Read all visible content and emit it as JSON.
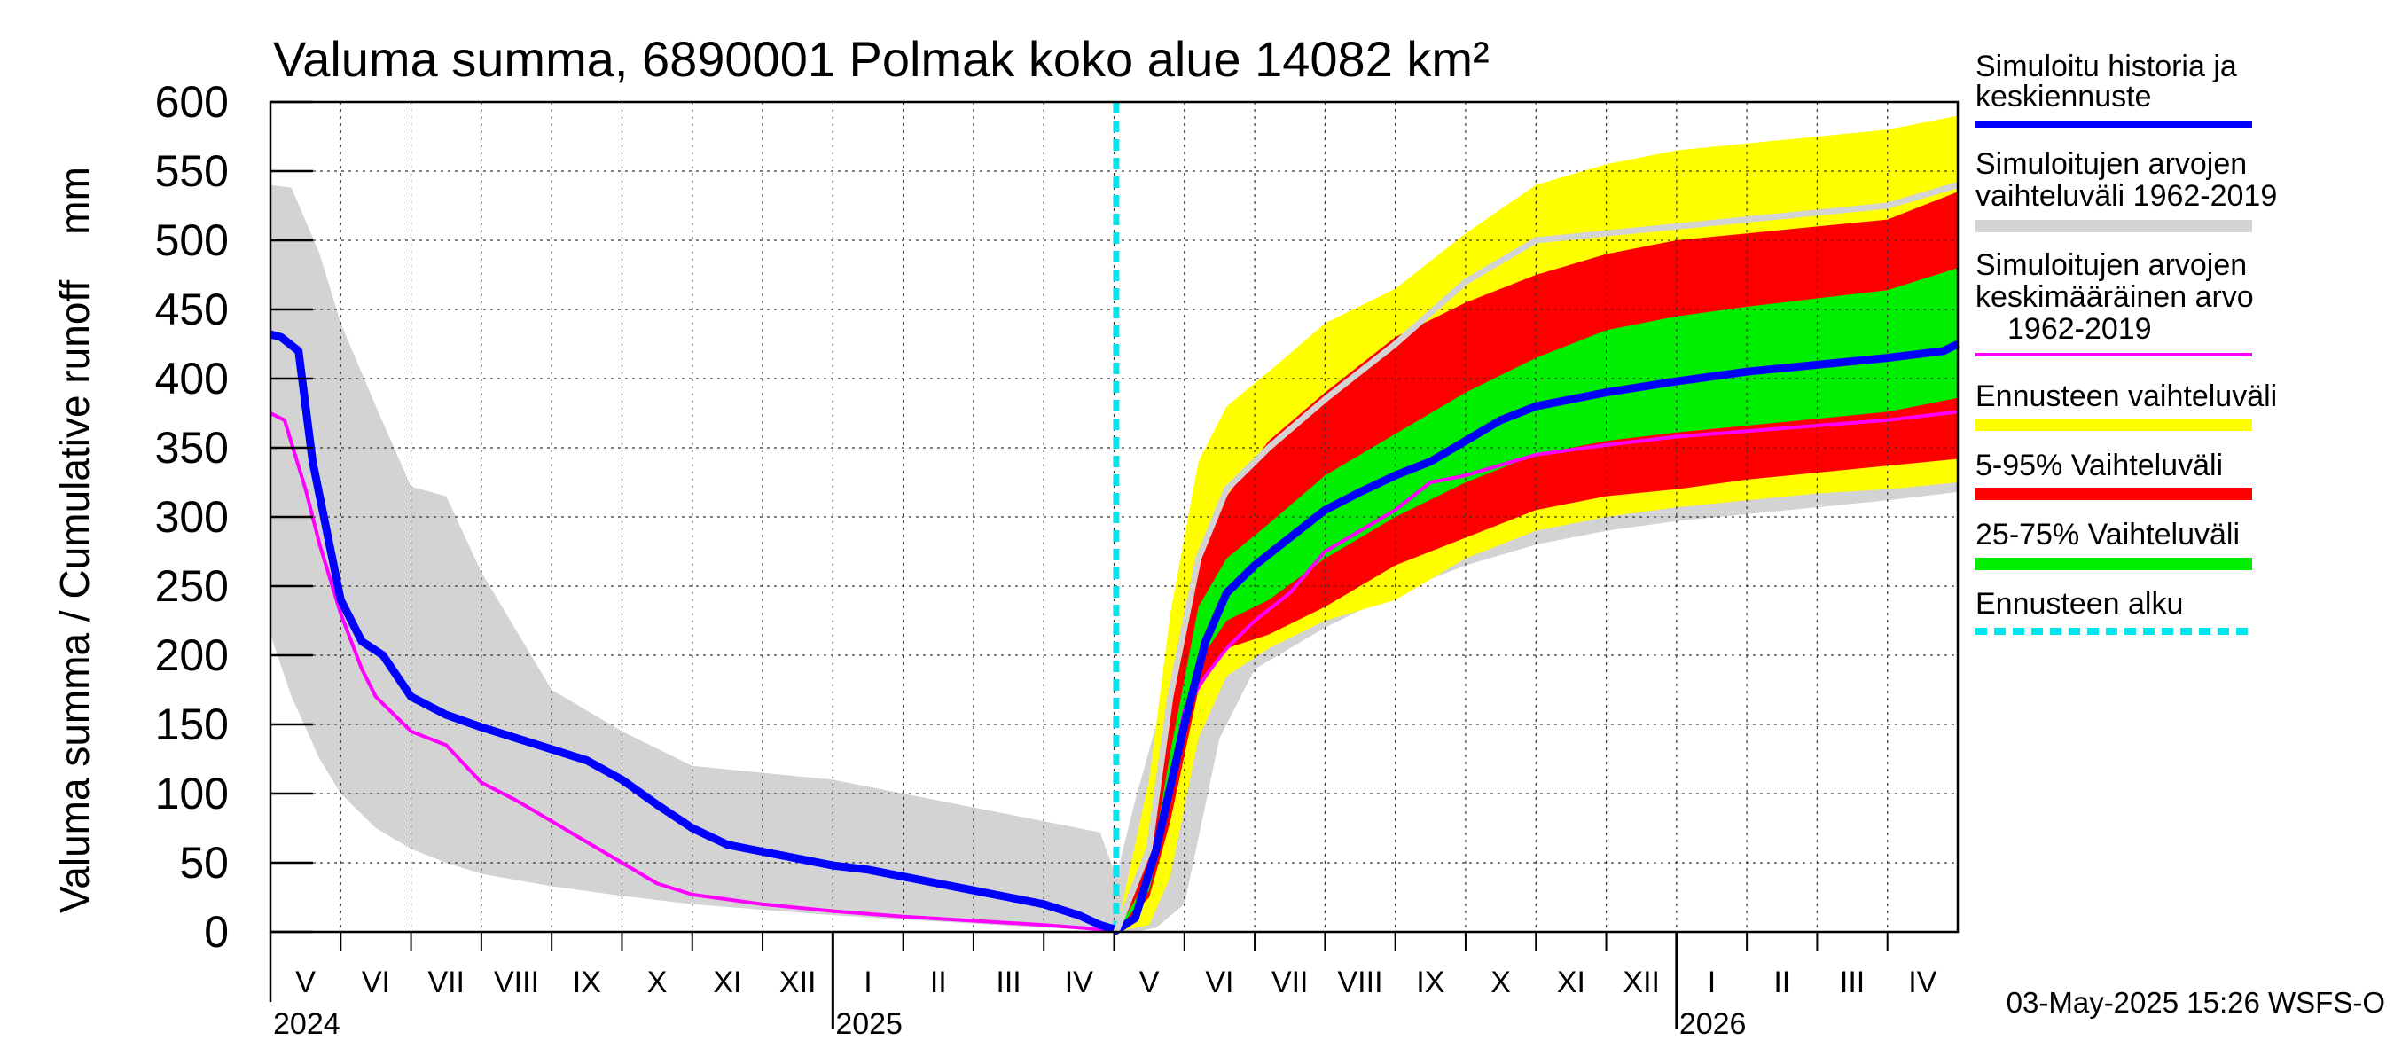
{
  "chart_data": {
    "type": "area",
    "title": "Valuma summa, 6890001 Polmak koko alue 14082 km²",
    "ylabel": "Valuma summa / Cumulative runoff    mm",
    "ylim": [
      0,
      600
    ],
    "yticks": [
      "0",
      "50",
      "100",
      "150",
      "200",
      "250",
      "300",
      "350",
      "400",
      "450",
      "500",
      "550",
      "600"
    ],
    "xrange_months": [
      0,
      24
    ],
    "months": [
      {
        "label": "V",
        "m": 0.5
      },
      {
        "label": "VI",
        "m": 1.5
      },
      {
        "label": "VII",
        "m": 2.5
      },
      {
        "label": "VIII",
        "m": 3.5
      },
      {
        "label": "IX",
        "m": 4.5
      },
      {
        "label": "X",
        "m": 5.5
      },
      {
        "label": "XI",
        "m": 6.5
      },
      {
        "label": "XII",
        "m": 7.5
      },
      {
        "label": "I",
        "m": 8.5
      },
      {
        "label": "II",
        "m": 9.5
      },
      {
        "label": "III",
        "m": 10.5
      },
      {
        "label": "IV",
        "m": 11.5
      },
      {
        "label": "V",
        "m": 12.5
      },
      {
        "label": "VI",
        "m": 13.5
      },
      {
        "label": "VII",
        "m": 14.5
      },
      {
        "label": "VIII",
        "m": 15.5
      },
      {
        "label": "IX",
        "m": 16.5
      },
      {
        "label": "X",
        "m": 17.5
      },
      {
        "label": "XI",
        "m": 18.5
      },
      {
        "label": "XII",
        "m": 19.5
      },
      {
        "label": "I",
        "m": 20.5
      },
      {
        "label": "II",
        "m": 21.5
      },
      {
        "label": "III",
        "m": 22.5
      },
      {
        "label": "IV",
        "m": 23.5
      }
    ],
    "years": [
      {
        "label": "2024",
        "m": 0
      },
      {
        "label": "2025",
        "m": 8
      },
      {
        "label": "2026",
        "m": 20
      }
    ],
    "forecast_start_m": 12.03,
    "series": [
      {
        "name": "Simuloitujen arvojen vaihteluväli 1962-2019",
        "kind": "band",
        "color": "#d3d3d3",
        "x": [
          0,
          0.3,
          0.7,
          1,
          1.5,
          2,
          2.5,
          3,
          4,
          5,
          6,
          7,
          8,
          9,
          10,
          11,
          11.8,
          12.03,
          12.3,
          12.6,
          13,
          13.5,
          14,
          15,
          16,
          17,
          18,
          19,
          20,
          21,
          22,
          23,
          24
        ],
        "upper": [
          540,
          538,
          490,
          440,
          380,
          322,
          315,
          260,
          175,
          145,
          120,
          115,
          110,
          100,
          90,
          80,
          72,
          40,
          95,
          150,
          240,
          300,
          345,
          410,
          455,
          485,
          500,
          505,
          510,
          515,
          520,
          525,
          550
        ],
        "lower": [
          215,
          170,
          125,
          100,
          75,
          60,
          50,
          42,
          33,
          26,
          20,
          16,
          12,
          9,
          6,
          3,
          1,
          0,
          0,
          3,
          20,
          140,
          190,
          220,
          245,
          265,
          280,
          290,
          297,
          302,
          307,
          312,
          318
        ]
      },
      {
        "name": "Ennusteen vaihteluväli",
        "kind": "band",
        "color": "#ffff00",
        "x": [
          12.03,
          12.5,
          12.8,
          13.2,
          13.6,
          14.2,
          15,
          16,
          17,
          18,
          19,
          20,
          21,
          22,
          23,
          24
        ],
        "upper": [
          0,
          110,
          230,
          340,
          380,
          405,
          440,
          465,
          505,
          540,
          555,
          565,
          570,
          575,
          580,
          590
        ],
        "lower": [
          0,
          5,
          40,
          140,
          185,
          205,
          225,
          240,
          270,
          290,
          300,
          307,
          312,
          317,
          320,
          325
        ]
      },
      {
        "name": "5-95% Vaihteluväli",
        "kind": "band",
        "color": "#ff0000",
        "x": [
          12.03,
          12.5,
          12.8,
          13.2,
          13.6,
          14.2,
          15,
          16,
          17,
          18,
          19,
          20,
          21,
          22,
          23,
          24
        ],
        "upper": [
          0,
          55,
          170,
          275,
          315,
          355,
          390,
          430,
          455,
          475,
          490,
          500,
          505,
          510,
          515,
          535
        ],
        "lower": [
          0,
          25,
          80,
          175,
          205,
          215,
          235,
          265,
          285,
          305,
          315,
          320,
          327,
          332,
          337,
          342
        ]
      },
      {
        "name": "25-75% Vaihteluväli",
        "kind": "band",
        "color": "#00ee00",
        "x": [
          12.03,
          12.5,
          12.8,
          13.2,
          13.6,
          14.2,
          15,
          16,
          17,
          18,
          19,
          20,
          21,
          22,
          23,
          24
        ],
        "upper": [
          0,
          40,
          130,
          235,
          270,
          295,
          330,
          360,
          390,
          415,
          435,
          445,
          452,
          458,
          464,
          480
        ],
        "lower": [
          0,
          30,
          95,
          195,
          225,
          240,
          270,
          300,
          325,
          345,
          355,
          361,
          366,
          371,
          376,
          386
        ]
      },
      {
        "name": "Simuloitujen arvojen keskimääräinen arvo 1962-2019",
        "kind": "line",
        "color": "#ff00ff",
        "x": [
          0,
          0.2,
          0.5,
          0.7,
          1,
          1.3,
          1.5,
          2,
          2.5,
          3,
          3.5,
          4,
          4.5,
          5,
          5.5,
          6,
          7,
          8,
          9,
          10,
          11,
          11.5,
          12,
          12.03,
          12.3,
          12.6,
          13,
          13.3,
          13.6,
          14,
          14.5,
          15,
          15.5,
          16,
          16.5,
          17,
          18,
          19,
          20,
          21,
          22,
          23,
          24
        ],
        "y": [
          375,
          370,
          320,
          280,
          230,
          190,
          170,
          145,
          135,
          108,
          95,
          80,
          65,
          50,
          35,
          27,
          20,
          15,
          11,
          8,
          5,
          3,
          1,
          0,
          8,
          60,
          160,
          185,
          205,
          225,
          245,
          275,
          290,
          305,
          325,
          330,
          345,
          352,
          358,
          362,
          366,
          370,
          376
        ]
      },
      {
        "name": "Simuloitu historia ja keskiennuste",
        "kind": "line",
        "color": "#0000ff",
        "x": [
          0,
          0.15,
          0.4,
          0.6,
          1,
          1.3,
          1.6,
          2,
          2.5,
          3,
          3.5,
          4,
          4.5,
          5,
          5.5,
          6,
          6.5,
          7,
          7.5,
          8,
          8.5,
          9,
          9.5,
          10,
          10.5,
          11,
          11.5,
          11.8,
          12,
          12.03,
          12.3,
          12.6,
          13,
          13.3,
          13.6,
          14,
          14.5,
          15,
          15.5,
          16,
          16.5,
          17,
          17.5,
          18,
          19,
          20,
          21,
          22,
          23,
          23.8,
          24
        ],
        "y": [
          432,
          430,
          420,
          340,
          240,
          210,
          200,
          170,
          157,
          148,
          140,
          132,
          124,
          110,
          92,
          75,
          63,
          58,
          53,
          48,
          45,
          40,
          35,
          30,
          25,
          20,
          12,
          5,
          2,
          1,
          10,
          60,
          150,
          210,
          245,
          265,
          285,
          305,
          318,
          330,
          340,
          355,
          370,
          380,
          390,
          398,
          405,
          410,
          415,
          420,
          425
        ]
      },
      {
        "name": "Simuloitujen arvojen vaihteluväli 1962-2019 (max)",
        "kind": "line",
        "color": "#d3d3d3",
        "x": [
          12.03,
          12.5,
          12.8,
          13.2,
          13.6,
          14.2,
          15,
          16,
          17,
          18,
          19,
          20,
          21,
          22,
          23,
          24
        ],
        "y": [
          0,
          60,
          170,
          270,
          320,
          350,
          385,
          425,
          470,
          500,
          505,
          510,
          515,
          520,
          525,
          540
        ]
      }
    ],
    "legend": [
      {
        "text": "Simuloitu historia ja keskiennuste",
        "color": "#0000ff",
        "style": "line"
      },
      {
        "text": "Simuloitujen arvojen vaihteluväli 1962-2019",
        "color": "#d3d3d3",
        "style": "thick"
      },
      {
        "text": "Simuloitujen arvojen keskimääräinen arvo 1962-2019",
        "color": "#ff00ff",
        "style": "line"
      },
      {
        "text": "Ennusteen vaihteluväli",
        "color": "#ffff00",
        "style": "thick"
      },
      {
        "text": "5-95% Vaihteluväli",
        "color": "#ff0000",
        "style": "thick"
      },
      {
        "text": "25-75% Vaihteluväli",
        "color": "#00ee00",
        "style": "thick"
      },
      {
        "text": "Ennusteen alku",
        "color": "#00e5ee",
        "style": "dashed"
      }
    ],
    "legend_labels": {
      "l1a": "Simuloitu historia ja",
      "l1b": "keskiennuste",
      "l2a": "Simuloitujen arvojen",
      "l2b": "vaihteluväli 1962-2019",
      "l3a": "Simuloitujen arvojen",
      "l3b": "keskimääräinen arvo",
      "l3c": "1962-2019",
      "l4": "Ennusteen vaihteluväli",
      "l5": "5-95% Vaihteluväli",
      "l6": "25-75% Vaihteluväli",
      "l7": "Ennusteen alku"
    },
    "timestamp": "03-May-2025 15:26 WSFS-O"
  }
}
